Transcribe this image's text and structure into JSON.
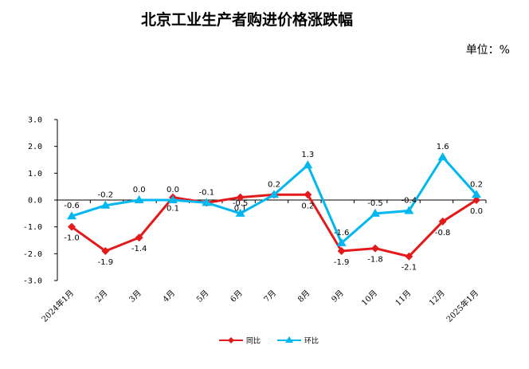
{
  "chart_data": {
    "type": "line",
    "title": "北京工业生产者购进价格涨跌幅",
    "unit": "单位：%",
    "categories": [
      "2024年1月",
      "2月",
      "3月",
      "4月",
      "5月",
      "6月",
      "7月",
      "8月",
      "9月",
      "10月",
      "11月",
      "12月",
      "2025年1月"
    ],
    "ylim": [
      -3.0,
      3.0
    ],
    "yticks": [
      "3.0",
      "2.0",
      "1.0",
      "0.0",
      "-1.0",
      "-2.0",
      "-3.0"
    ],
    "grid": false,
    "legend_position": "bottom-center",
    "series": [
      {
        "name": "同比",
        "color": "#e31a1c",
        "marker": "diamond",
        "values": [
          -1.0,
          -1.9,
          -1.4,
          0.1,
          -0.1,
          0.1,
          0.2,
          0.2,
          -1.9,
          -1.8,
          -2.1,
          -0.8,
          0.0
        ],
        "labels": [
          "-1.0",
          "-1.9",
          "-1.4",
          "0.1",
          "",
          "0.1",
          "",
          "0.2",
          "-1.9",
          "-1.8",
          "-2.1",
          "-0.8",
          "0.0"
        ]
      },
      {
        "name": "环比",
        "color": "#00b7f0",
        "marker": "triangle",
        "values": [
          -0.6,
          -0.2,
          0.0,
          0.0,
          -0.1,
          -0.5,
          0.2,
          1.3,
          -1.6,
          -0.5,
          -0.4,
          1.6,
          0.2
        ],
        "labels": [
          "-0.6",
          "-0.2",
          "0.0",
          "0.0",
          "-0.1",
          "-0.5",
          "0.2",
          "1.3",
          "-1.6",
          "-0.5",
          "-0.4",
          "1.6",
          "0.2"
        ]
      }
    ]
  }
}
